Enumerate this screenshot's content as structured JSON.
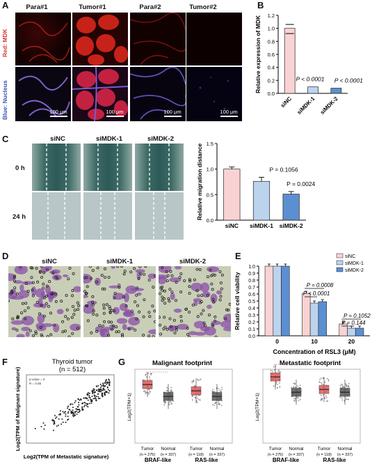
{
  "panels": {
    "A": {
      "letter": "A",
      "col_headers": [
        "Para#1",
        "Tumor#1",
        "Para#2",
        "Tumor#2"
      ],
      "row_label_red": "Red: MDK",
      "row_label_blue": "Blue: Nucleus",
      "scalebar": "100 μm"
    },
    "B": {
      "letter": "B"
    },
    "C": {
      "letter": "C",
      "col_headers": [
        "siNC",
        "siMDK-1",
        "siMDK-2"
      ],
      "rows": [
        "0 h",
        "24 h"
      ]
    },
    "D": {
      "letter": "D",
      "col_headers": [
        "siNC",
        "siMDK-1",
        "siMDK-2"
      ]
    },
    "E": {
      "letter": "E"
    },
    "F": {
      "letter": "F",
      "title": "Thyroid tumor",
      "subtitle": "(n = 512)",
      "ylabel": "Log2(TPM of Malignant signature)",
      "xlabel": "Log2(TPM of Metastatic signature)",
      "legend": [
        "p-value = 0",
        "R = 0.85"
      ]
    },
    "G": {
      "letter": "G",
      "left_title": "Malignant footprint",
      "right_title": "Metastatic footprint",
      "ylabel": "Log2(TPM+1)",
      "groups": [
        {
          "name": "Tumor",
          "n": "(n = 275)"
        },
        {
          "name": "Normal",
          "n": "(n = 337)"
        },
        {
          "name": "Tumor",
          "n": "(n = 118)"
        },
        {
          "name": "Normal",
          "n": "(n = 337)"
        }
      ],
      "group_labels": [
        "BRAF-like",
        "RAS-like"
      ]
    }
  },
  "colors": {
    "siNC": "#f9d3d3",
    "siMDK1": "#bcd3ee",
    "siMDK2": "#5b8fd1",
    "tumor": "#e05a5a",
    "normal": "#555555"
  },
  "chart_data": [
    {
      "id": "B",
      "type": "bar",
      "categories": [
        "siNC",
        "siMDK-1",
        "siMDK-2"
      ],
      "values": [
        1.0,
        0.1,
        0.08
      ],
      "ylabel": "Relative expression of MDK",
      "ylim": [
        0,
        1.2
      ],
      "yticks": [
        0.0,
        0.2,
        0.4,
        0.6,
        0.8,
        1.0,
        1.2
      ],
      "annotations": [
        "P < 0.0001",
        "P < 0.0001"
      ]
    },
    {
      "id": "C",
      "type": "bar",
      "categories": [
        "siNC",
        "siMDK-1",
        "siMDK-2"
      ],
      "values": [
        1.0,
        0.76,
        0.51
      ],
      "errors": [
        0.04,
        0.08,
        0.05
      ],
      "ylabel": "Relative migration distance",
      "ylim": [
        0,
        1.5
      ],
      "yticks": [
        0.0,
        0.5,
        1.0,
        1.5
      ],
      "annotations": [
        "P = 0.1056",
        "P = 0.0024"
      ]
    },
    {
      "id": "E",
      "type": "bar",
      "categories": [
        "0",
        "10",
        "20"
      ],
      "series": [
        {
          "name": "siNC",
          "values": [
            1.0,
            0.61,
            0.17
          ]
        },
        {
          "name": "siMDK-1",
          "values": [
            1.0,
            0.47,
            0.11
          ]
        },
        {
          "name": "siMDK-2",
          "values": [
            1.0,
            0.49,
            0.11
          ]
        }
      ],
      "ylabel": "Relative cell viability",
      "xlabel": "Concentration of RSL3 (μM)",
      "ylim": [
        0,
        1.0
      ],
      "yticks": [
        0.0,
        0.1,
        0.2,
        0.3,
        0.4,
        0.5,
        0.6,
        0.7,
        0.8,
        0.9,
        1.0
      ],
      "annotations": [
        "P = 0.0008",
        "P < 0.0001",
        "P = 0.1052",
        "P = 0.144"
      ]
    }
  ]
}
